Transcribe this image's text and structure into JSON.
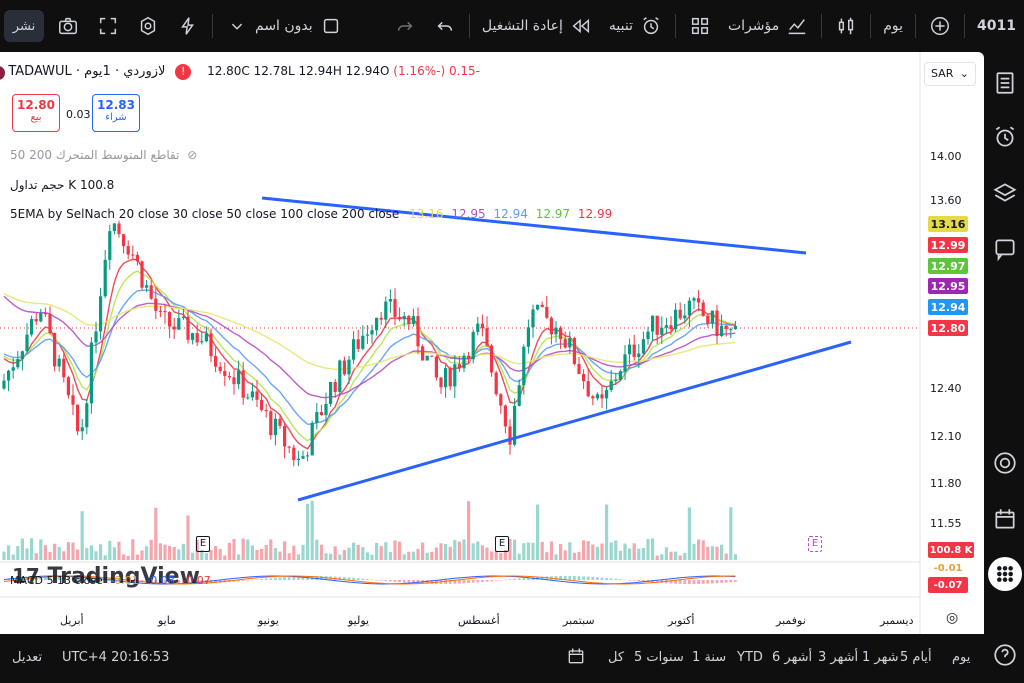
{
  "topbar": {
    "symbol": "4011",
    "interval": "يوم",
    "indicators_label": "مؤشرات",
    "alert_label": "تنبيه",
    "replay_label": "إعادة التشغيل",
    "layout_name": "بدون اسم",
    "share_label": "نشر"
  },
  "legend": {
    "symbol_line": "لازوردي · 1يوم · TADAWUL",
    "change": "-0.15 (-1.16%)",
    "ohlc": "12.80C  12.78L  12.94H  12.94O",
    "sell_price": "12.80",
    "sell_label": "بيع",
    "spread": "0.03",
    "buy_price": "12.83",
    "buy_label": "شراء",
    "ma_line": "50 200  تقاطع المتوسط المتحرك",
    "volume_line": "حجم تداول  K 100.8",
    "ema_line": "5EMA by SelNach 20 close 30 close 50 close 100 close 200 close",
    "ema_values": [
      "13.16",
      "12.95",
      "12.94",
      "12.97",
      "12.99"
    ],
    "macd_line": "MACD 5 13 close",
    "macd_values": [
      "-0.01",
      "-0.08",
      "-0.07"
    ],
    "currency": "SAR"
  },
  "colors": {
    "up": "#089981",
    "down": "#f23645",
    "trend": "#2962ff",
    "ema20": "#f23645",
    "ema30": "#b2e34b",
    "ema50": "#5b9cf6",
    "ema100": "#b84cc4",
    "ema200": "#e5e56b"
  },
  "price_axis": {
    "ticks": [
      "14.00",
      "13.60",
      "12.40",
      "12.10",
      "11.80",
      "11.55"
    ],
    "tags": [
      {
        "value": "13.16",
        "color": "#e5d94b",
        "text_color": "#131722"
      },
      {
        "value": "12.99",
        "color": "#f23645",
        "text_color": "#ffffff"
      },
      {
        "value": "12.97",
        "color": "#5cc639",
        "text_color": "#ffffff"
      },
      {
        "value": "12.95",
        "color": "#9c27b0",
        "text_color": "#ffffff"
      },
      {
        "value": "12.94",
        "color": "#2196f3",
        "text_color": "#ffffff"
      },
      {
        "value": "12.80",
        "color": "#f23645",
        "text_color": "#ffffff"
      }
    ],
    "volume_tag": "100.8 K",
    "macd_tags": [
      "-0.01",
      "-0.07"
    ]
  },
  "time_axis": {
    "months": [
      "أبريل",
      "مايو",
      "يونيو",
      "يوليو",
      "أغسطس",
      "سبتمبر",
      "أكتوبر",
      "نوفمبر",
      "ديسمبر"
    ]
  },
  "bottombar": {
    "ranges": [
      "يوم",
      "5 أيام",
      "1 شهر",
      "3 أشهر",
      "6 أشهر",
      "YTD",
      "1 سنة",
      "5 سنوات",
      "كل"
    ],
    "time": "UTC+4 20:16:53",
    "adjust_label": "تعديل"
  },
  "watermark": "TradingView",
  "event_marker": "E"
}
